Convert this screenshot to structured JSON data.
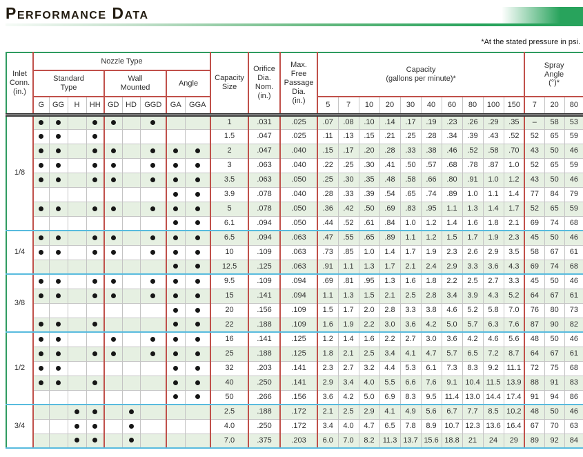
{
  "page": {
    "title": "Performance Data",
    "note": "*At the stated pressure in psi.",
    "accent_green": "#28a35c",
    "grid_red": "#c0504a",
    "group_divider_blue": "#58bbde",
    "row_tint_green": "#e6f0e2"
  },
  "table": {
    "header": {
      "inlet": "Inlet\nConn.\n(in.)",
      "nozzle_type": "Nozzle Type",
      "standard_type": "Standard\nType",
      "wall_mounted": "Wall\nMounted",
      "angle": "Angle",
      "nozzle_cols": [
        "G",
        "GG",
        "H",
        "HH",
        "GD",
        "HD",
        "GGD",
        "GA",
        "GGA"
      ],
      "capacity_size": "Capacity\nSize",
      "orifice": "Orifice\nDia.\nNom.\n(in.)",
      "max_free_passage": "Max.\nFree\nPassage\nDia.\n(in.)",
      "capacity": "Capacity\n(gallons per minute)*",
      "pressures": [
        "5",
        "7",
        "10",
        "20",
        "30",
        "40",
        "60",
        "80",
        "100",
        "150"
      ],
      "spray_angle": "Spray\nAngle\n(°)*",
      "spray_pressures": [
        "7",
        "20",
        "80"
      ]
    },
    "groups": [
      {
        "inlet": "1/8",
        "rows": [
          {
            "types": [
              1,
              1,
              0,
              1,
              1,
              0,
              1,
              0,
              0
            ],
            "size": "1",
            "orifice": ".031",
            "passage": ".025",
            "capacity": [
              ".07",
              ".08",
              ".10",
              ".14",
              ".17",
              ".19",
              ".23",
              ".26",
              ".29",
              ".35"
            ],
            "spray": [
              "–",
              "58",
              "53"
            ]
          },
          {
            "types": [
              1,
              1,
              0,
              1,
              0,
              0,
              0,
              0,
              0
            ],
            "size": "1.5",
            "orifice": ".047",
            "passage": ".025",
            "capacity": [
              ".11",
              ".13",
              ".15",
              ".21",
              ".25",
              ".28",
              ".34",
              ".39",
              ".43",
              ".52"
            ],
            "spray": [
              "52",
              "65",
              "59"
            ]
          },
          {
            "types": [
              1,
              1,
              0,
              1,
              1,
              0,
              1,
              1,
              1
            ],
            "size": "2",
            "orifice": ".047",
            "passage": ".040",
            "capacity": [
              ".15",
              ".17",
              ".20",
              ".28",
              ".33",
              ".38",
              ".46",
              ".52",
              ".58",
              ".70"
            ],
            "spray": [
              "43",
              "50",
              "46"
            ]
          },
          {
            "types": [
              1,
              1,
              0,
              1,
              1,
              0,
              1,
              1,
              1
            ],
            "size": "3",
            "orifice": ".063",
            "passage": ".040",
            "capacity": [
              ".22",
              ".25",
              ".30",
              ".41",
              ".50",
              ".57",
              ".68",
              ".78",
              ".87",
              "1.0"
            ],
            "spray": [
              "52",
              "65",
              "59"
            ]
          },
          {
            "types": [
              1,
              1,
              0,
              1,
              1,
              0,
              1,
              1,
              1
            ],
            "size": "3.5",
            "orifice": ".063",
            "passage": ".050",
            "capacity": [
              ".25",
              ".30",
              ".35",
              ".48",
              ".58",
              ".66",
              ".80",
              ".91",
              "1.0",
              "1.2"
            ],
            "spray": [
              "43",
              "50",
              "46"
            ]
          },
          {
            "types": [
              0,
              0,
              0,
              0,
              0,
              0,
              0,
              1,
              1
            ],
            "size": "3.9",
            "orifice": ".078",
            "passage": ".040",
            "capacity": [
              ".28",
              ".33",
              ".39",
              ".54",
              ".65",
              ".74",
              ".89",
              "1.0",
              "1.1",
              "1.4"
            ],
            "spray": [
              "77",
              "84",
              "79"
            ]
          },
          {
            "types": [
              1,
              1,
              0,
              1,
              1,
              0,
              1,
              1,
              1
            ],
            "size": "5",
            "orifice": ".078",
            "passage": ".050",
            "capacity": [
              ".36",
              ".42",
              ".50",
              ".69",
              ".83",
              ".95",
              "1.1",
              "1.3",
              "1.4",
              "1.7"
            ],
            "spray": [
              "52",
              "65",
              "59"
            ]
          },
          {
            "types": [
              0,
              0,
              0,
              0,
              0,
              0,
              0,
              1,
              1
            ],
            "size": "6.1",
            "orifice": ".094",
            "passage": ".050",
            "capacity": [
              ".44",
              ".52",
              ".61",
              ".84",
              "1.0",
              "1.2",
              "1.4",
              "1.6",
              "1.8",
              "2.1"
            ],
            "spray": [
              "69",
              "74",
              "68"
            ]
          }
        ]
      },
      {
        "inlet": "1/4",
        "rows": [
          {
            "types": [
              1,
              1,
              0,
              1,
              1,
              0,
              1,
              1,
              1
            ],
            "size": "6.5",
            "orifice": ".094",
            "passage": ".063",
            "capacity": [
              ".47",
              ".55",
              ".65",
              ".89",
              "1.1",
              "1.2",
              "1.5",
              "1.7",
              "1.9",
              "2.3"
            ],
            "spray": [
              "45",
              "50",
              "46"
            ]
          },
          {
            "types": [
              1,
              1,
              0,
              1,
              1,
              0,
              1,
              1,
              1
            ],
            "size": "10",
            "orifice": ".109",
            "passage": ".063",
            "capacity": [
              ".73",
              ".85",
              "1.0",
              "1.4",
              "1.7",
              "1.9",
              "2.3",
              "2.6",
              "2.9",
              "3.5"
            ],
            "spray": [
              "58",
              "67",
              "61"
            ]
          },
          {
            "types": [
              0,
              0,
              0,
              0,
              0,
              0,
              0,
              1,
              1
            ],
            "size": "12.5",
            "orifice": ".125",
            "passage": ".063",
            "capacity": [
              ".91",
              "1.1",
              "1.3",
              "1.7",
              "2.1",
              "2.4",
              "2.9",
              "3.3",
              "3.6",
              "4.3"
            ],
            "spray": [
              "69",
              "74",
              "68"
            ]
          }
        ]
      },
      {
        "inlet": "3/8",
        "rows": [
          {
            "types": [
              1,
              1,
              0,
              1,
              1,
              0,
              1,
              1,
              1
            ],
            "size": "9.5",
            "orifice": ".109",
            "passage": ".094",
            "capacity": [
              ".69",
              ".81",
              ".95",
              "1.3",
              "1.6",
              "1.8",
              "2.2",
              "2.5",
              "2.7",
              "3.3"
            ],
            "spray": [
              "45",
              "50",
              "46"
            ]
          },
          {
            "types": [
              1,
              1,
              0,
              1,
              1,
              0,
              1,
              1,
              1
            ],
            "size": "15",
            "orifice": ".141",
            "passage": ".094",
            "capacity": [
              "1.1",
              "1.3",
              "1.5",
              "2.1",
              "2.5",
              "2.8",
              "3.4",
              "3.9",
              "4.3",
              "5.2"
            ],
            "spray": [
              "64",
              "67",
              "61"
            ]
          },
          {
            "types": [
              0,
              0,
              0,
              0,
              0,
              0,
              0,
              1,
              1
            ],
            "size": "20",
            "orifice": ".156",
            "passage": ".109",
            "capacity": [
              "1.5",
              "1.7",
              "2.0",
              "2.8",
              "3.3",
              "3.8",
              "4.6",
              "5.2",
              "5.8",
              "7.0"
            ],
            "spray": [
              "76",
              "80",
              "73"
            ]
          },
          {
            "types": [
              1,
              1,
              0,
              1,
              0,
              0,
              0,
              1,
              1
            ],
            "size": "22",
            "orifice": ".188",
            "passage": ".109",
            "capacity": [
              "1.6",
              "1.9",
              "2.2",
              "3.0",
              "3.6",
              "4.2",
              "5.0",
              "5.7",
              "6.3",
              "7.6"
            ],
            "spray": [
              "87",
              "90",
              "82"
            ]
          }
        ]
      },
      {
        "inlet": "1/2",
        "rows": [
          {
            "types": [
              1,
              1,
              0,
              0,
              1,
              0,
              1,
              1,
              1
            ],
            "size": "16",
            "orifice": ".141",
            "passage": ".125",
            "capacity": [
              "1.2",
              "1.4",
              "1.6",
              "2.2",
              "2.7",
              "3.0",
              "3.6",
              "4.2",
              "4.6",
              "5.6"
            ],
            "spray": [
              "48",
              "50",
              "46"
            ]
          },
          {
            "types": [
              1,
              1,
              0,
              1,
              1,
              0,
              1,
              1,
              1
            ],
            "size": "25",
            "orifice": ".188",
            "passage": ".125",
            "capacity": [
              "1.8",
              "2.1",
              "2.5",
              "3.4",
              "4.1",
              "4.7",
              "5.7",
              "6.5",
              "7.2",
              "8.7"
            ],
            "spray": [
              "64",
              "67",
              "61"
            ]
          },
          {
            "types": [
              1,
              1,
              0,
              0,
              0,
              0,
              0,
              1,
              1
            ],
            "size": "32",
            "orifice": ".203",
            "passage": ".141",
            "capacity": [
              "2.3",
              "2.7",
              "3.2",
              "4.4",
              "5.3",
              "6.1",
              "7.3",
              "8.3",
              "9.2",
              "11.1"
            ],
            "spray": [
              "72",
              "75",
              "68"
            ]
          },
          {
            "types": [
              1,
              1,
              0,
              1,
              0,
              0,
              0,
              1,
              1
            ],
            "size": "40",
            "orifice": ".250",
            "passage": ".141",
            "capacity": [
              "2.9",
              "3.4",
              "4.0",
              "5.5",
              "6.6",
              "7.6",
              "9.1",
              "10.4",
              "11.5",
              "13.9"
            ],
            "spray": [
              "88",
              "91",
              "83"
            ]
          },
          {
            "types": [
              0,
              0,
              0,
              0,
              0,
              0,
              0,
              1,
              1
            ],
            "size": "50",
            "orifice": ".266",
            "passage": ".156",
            "capacity": [
              "3.6",
              "4.2",
              "5.0",
              "6.9",
              "8.3",
              "9.5",
              "11.4",
              "13.0",
              "14.4",
              "17.4"
            ],
            "spray": [
              "91",
              "94",
              "86"
            ]
          }
        ]
      },
      {
        "inlet": "3/4",
        "rows": [
          {
            "types": [
              0,
              0,
              1,
              1,
              0,
              1,
              0,
              0,
              0
            ],
            "size": "2.5",
            "orifice": ".188",
            "passage": ".172",
            "capacity": [
              "2.1",
              "2.5",
              "2.9",
              "4.1",
              "4.9",
              "5.6",
              "6.7",
              "7.7",
              "8.5",
              "10.2"
            ],
            "spray": [
              "48",
              "50",
              "46"
            ]
          },
          {
            "types": [
              0,
              0,
              1,
              1,
              0,
              1,
              0,
              0,
              0
            ],
            "size": "4.0",
            "orifice": ".250",
            "passage": ".172",
            "capacity": [
              "3.4",
              "4.0",
              "4.7",
              "6.5",
              "7.8",
              "8.9",
              "10.7",
              "12.3",
              "13.6",
              "16.4"
            ],
            "spray": [
              "67",
              "70",
              "63"
            ]
          },
          {
            "types": [
              0,
              0,
              1,
              1,
              0,
              1,
              0,
              0,
              0
            ],
            "size": "7.0",
            "orifice": ".375",
            "passage": ".203",
            "capacity": [
              "6.0",
              "7.0",
              "8.2",
              "11.3",
              "13.7",
              "15.6",
              "18.8",
              "21",
              "24",
              "29"
            ],
            "spray": [
              "89",
              "92",
              "84"
            ]
          }
        ]
      }
    ]
  }
}
